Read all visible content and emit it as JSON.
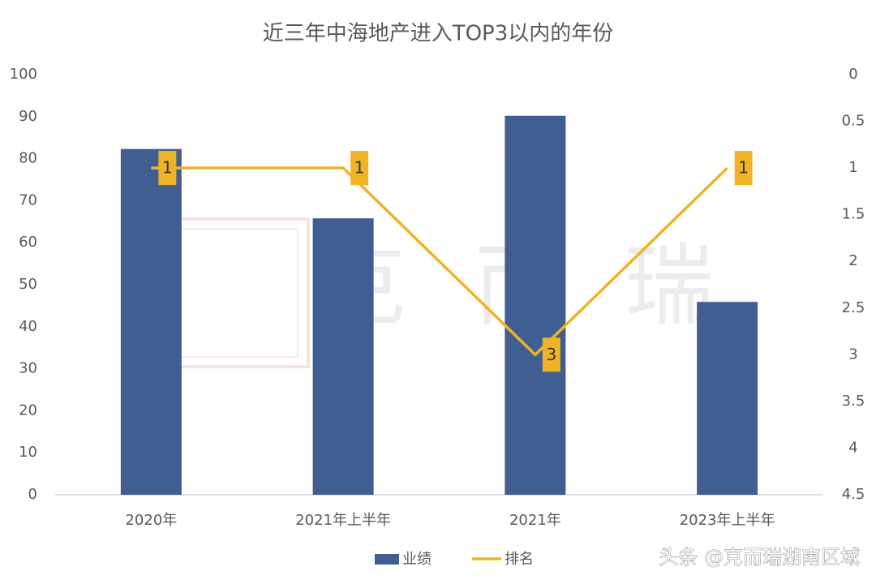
{
  "chart_data": {
    "type": "bar_line",
    "title": "近三年中海地产进入TOP3以内的年份",
    "categories": [
      "2020年",
      "2021年上半年",
      "2021年",
      "2023年上半年"
    ],
    "series": [
      {
        "name": "业绩",
        "type": "bar",
        "color": "#3f5f93",
        "values": [
          82.3,
          65.8,
          90.2,
          45.9
        ]
      },
      {
        "name": "排名",
        "type": "line",
        "axis": "y2",
        "color": "#f0b323",
        "values": [
          1,
          1,
          3,
          1
        ]
      }
    ],
    "ylim": [
      0,
      100
    ],
    "yticks": [
      0,
      10,
      20,
      30,
      40,
      50,
      60,
      70,
      80,
      90,
      100
    ],
    "y2lim": [
      0,
      4.5
    ],
    "y2ticks": [
      0,
      0.5,
      1,
      1.5,
      2,
      2.5,
      3,
      3.5,
      4,
      4.5
    ],
    "y2_reversed": true,
    "legend": "bottom",
    "watermark": [
      "克",
      "而",
      "瑞"
    ],
    "footer": "头条 @克而瑞湖南区域"
  }
}
